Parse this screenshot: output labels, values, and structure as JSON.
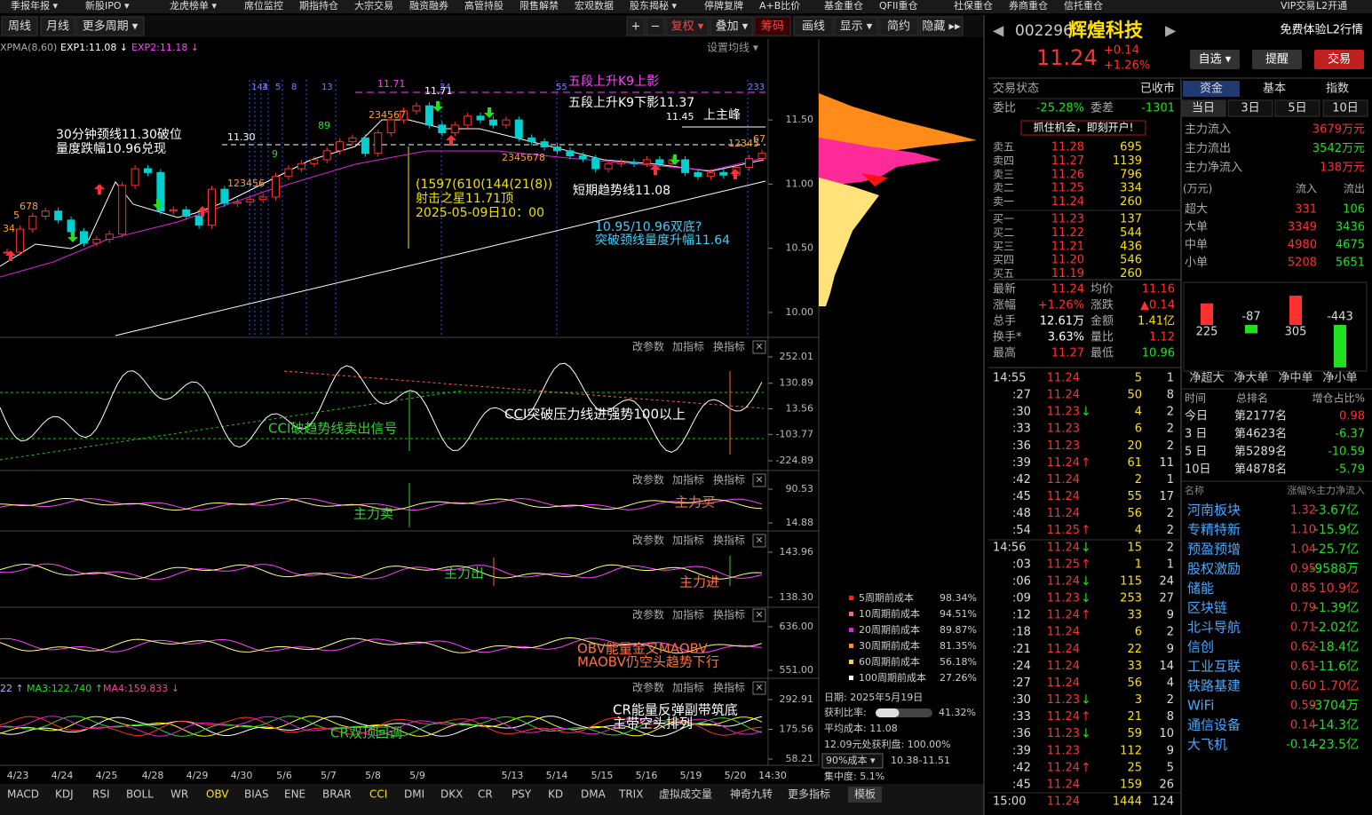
{
  "menu": [
    "季报年报 ▾",
    "新股IPO ▾",
    "龙虎榜单 ▾",
    "席位监控",
    "期指持仓",
    "大宗交易",
    "融资融券",
    "高管持股",
    "限售解禁",
    "宏观数据",
    "股东揭秘 ▾",
    "停牌复牌",
    "A+B比价",
    "基金重仓",
    "QFII重仓",
    "社保重仓",
    "券商重仓",
    "信托重仓",
    "VIP交易",
    "L2开通"
  ],
  "toolbar": {
    "left": [
      "周线",
      "月线",
      "更多周期 ▾"
    ],
    "right": [
      "+",
      "−",
      "复权 ▾",
      "叠加 ▾",
      "筹码",
      "画线",
      "显示 ▾",
      "简约",
      "隐藏 ▸▸"
    ]
  },
  "main_chart": {
    "legend": [
      "XPMA(8,60)",
      "EXP1:11.08 ↓",
      "EXP2:11.18 ↓"
    ],
    "setting": "设置均线 ▾",
    "ylim": [
      9.82,
      12.13
    ],
    "yticks": [
      {
        "value": 11.5,
        "label": "11.50"
      },
      {
        "value": 11,
        "label": "11.00"
      },
      {
        "value": 10.5,
        "label": "10.50"
      },
      {
        "value": 10,
        "label": "10.00"
      }
    ],
    "closes": [
      10.47,
      10.65,
      10.75,
      10.79,
      10.72,
      10.63,
      10.54,
      10.57,
      10.61,
      10.99,
      11.12,
      11.09,
      10.79,
      10.8,
      10.75,
      10.68,
      10.96,
      10.85,
      10.86,
      10.88,
      10.9,
      11.06,
      11.12,
      11.16,
      11.19,
      11.26,
      11.33,
      11.36,
      11.24,
      11.4,
      11.5,
      11.57,
      11.61,
      11.46,
      11.4,
      11.46,
      11.53,
      11.5,
      11.46,
      11.5,
      11.36,
      11.33,
      11.29,
      11.26,
      11.22,
      11.2,
      11.12,
      11.16,
      11.17,
      11.16,
      11.19,
      11.16,
      11.19,
      11.09,
      11.06,
      11.09,
      11.07,
      11.13,
      11.2,
      11.24
    ],
    "annotations": [
      "30分钟颈线11.30破位",
      "量度跌幅10.96兑现",
      "11.30",
      "五段上升K9上影",
      "五段上升K9下影11.37",
      "11.45",
      "上主峰",
      "11.71",
      "11.71",
      "(1597(610(144(21(8))",
      "射击之星11.71顶",
      "2025-05-09日10：00",
      "短期趋势线11.08",
      "10.95/10.96双底?",
      "突破颈线量度升幅11.64"
    ],
    "fib_labels": [
      "144",
      "3",
      "5",
      "8",
      "13",
      "34",
      "55",
      "233"
    ],
    "counts": [
      "678",
      "34",
      "5",
      "123456",
      "89",
      "234567",
      "2345678",
      "9",
      "12345",
      "67"
    ]
  },
  "indicators": [
    {
      "buttons": [
        "改参数",
        "加指标",
        "换指标",
        "✕"
      ],
      "ylim": [
        -261.6,
        333.5
      ],
      "yticks": [
        252.01,
        130.89,
        13.56,
        -103.77,
        -224.89
      ],
      "annotations": [
        "CCI破趋势线卖出信号",
        "CCI突破压力线进强势100以上"
      ]
    },
    {
      "buttons": [
        "改参数",
        "加指标",
        "换指标",
        "✕"
      ],
      "ylim": [
        1,
        128.3
      ],
      "yticks": [
        90.53,
        14.88
      ],
      "annotations": [
        "主力卖",
        "主力买"
      ]
    },
    {
      "buttons": [
        "改参数",
        "加指标",
        "换指标",
        "✕"
      ],
      "ylim": [
        137.5,
        146.4
      ],
      "yticks": [
        143.96,
        {
          "value": 138.3,
          "label": "138.30"
        }
      ],
      "annotations": [
        "主力出",
        "主力进"
      ]
    },
    {
      "buttons": [
        "改参数",
        "加指标",
        "换指标",
        "✕"
      ],
      "ylim": [
        538.9,
        674.2
      ],
      "yticks": [
        {
          "value": 636,
          "label": "636.00"
        },
        {
          "value": 551,
          "label": "551.00"
        }
      ],
      "annotations": [
        "OBV能量金叉MAOBV",
        "MAOBV仍空头趋势下行"
      ]
    },
    {
      "buttons": [
        "改参数",
        "加指标",
        "换指标",
        "✕"
      ],
      "ylim": [
        33.7,
        370
      ],
      "yticks": [
        292.91,
        175.56,
        58.21
      ],
      "legend": [
        "22 ↑",
        "MA3:122.740 ↑",
        "MA4:159.833 ↓"
      ],
      "annotations": [
        "CR双顶回调",
        "CR能量反弹副带筑底",
        "主带空头排列"
      ]
    }
  ],
  "dates": [
    "4/23",
    "4/24",
    "4/25",
    "4/28",
    "4/29",
    "4/30",
    "5/6",
    "5/7",
    "5/8",
    "5/9",
    "5/13",
    "5/14",
    "5/15",
    "5/16",
    "5/19",
    "5/20",
    "14:30"
  ],
  "tabs": [
    "MACD",
    "KDJ",
    "RSI",
    "BOLL",
    "WR",
    "OBV",
    "BIAS",
    "ENE",
    "BRAR",
    "CCI",
    "DMI",
    "DKX",
    "CR",
    "PSY",
    "KD",
    "DMA",
    "TRIX",
    "虚拟成交量",
    "神奇九转",
    "更多指标",
    "模板"
  ],
  "cost": {
    "rows": [
      [
        "5周期前成本",
        "98.34%"
      ],
      [
        "10周期前成本",
        "94.51%"
      ],
      [
        "20周期前成本",
        "89.87%"
      ],
      [
        "30周期前成本",
        "81.35%"
      ],
      [
        "60周期前成本",
        "56.18%"
      ],
      [
        "100周期前成本",
        "27.26%"
      ]
    ],
    "date": "日期: 2025年5月19日",
    "profit_label": "获利比率:",
    "profit_ratio": 41.32,
    "profit_ratio_label": "41.32%",
    "avg_cost": "平均成本: 11.08",
    "profit_at": "12.09元处获利盘: 100.00%",
    "range_select": "90%成本 ▾",
    "range": "10.38-11.51",
    "concentration": "集中度: 5.1%"
  },
  "quote": {
    "code": "002296",
    "name": "辉煌科技",
    "price": "11.24",
    "change": "+0.14",
    "pct": "+1.26%",
    "l2": "免费体验L2行情",
    "buttons": [
      "自选 ▾",
      "提醒",
      "交易"
    ],
    "status_label": "交易状态",
    "status": "已收市",
    "wb_label": "委比",
    "wb": "-25.28%",
    "wc_label": "委差",
    "wc": "-1301",
    "promo": "抓住机会，即刻开户!"
  },
  "order_book": [
    [
      "卖五",
      "11.28",
      "695"
    ],
    [
      "卖四",
      "11.27",
      "1139"
    ],
    [
      "卖三",
      "11.26",
      "796"
    ],
    [
      "卖二",
      "11.25",
      "334"
    ],
    [
      "卖一",
      "11.24",
      "260"
    ],
    [
      "买一",
      "11.23",
      "137"
    ],
    [
      "买二",
      "11.22",
      "544"
    ],
    [
      "买三",
      "11.21",
      "436"
    ],
    [
      "买四",
      "11.20",
      "546"
    ],
    [
      "买五",
      "11.19",
      "260"
    ]
  ],
  "stats": [
    [
      "最新",
      "11.24",
      "均价",
      "11.16"
    ],
    [
      "涨幅",
      "+1.26%",
      "涨跌",
      "▲0.14"
    ],
    [
      "总手",
      "12.61万",
      "金额",
      "1.41亿"
    ],
    [
      "换手*",
      "3.63%",
      "量比",
      "1.12"
    ],
    [
      "最高",
      "11.27",
      "最低",
      "10.96"
    ]
  ],
  "ticks": [
    {
      "t": "14:55",
      "p": "11.24",
      "v": "5",
      "n": "1"
    },
    {
      "t": ":27",
      "p": "11.24",
      "v": "50",
      "n": "8"
    },
    {
      "t": ":30",
      "p": "11.23",
      "d": "↓",
      "v": "4",
      "n": "2"
    },
    {
      "t": ":33",
      "p": "11.23",
      "v": "6",
      "n": "2"
    },
    {
      "t": ":36",
      "p": "11.23",
      "v": "20",
      "n": "2"
    },
    {
      "t": ":39",
      "p": "11.24",
      "d": "↑",
      "v": "61",
      "n": "11"
    },
    {
      "t": ":42",
      "p": "11.24",
      "v": "2",
      "n": "1"
    },
    {
      "t": ":45",
      "p": "11.24",
      "v": "55",
      "n": "17"
    },
    {
      "t": ":48",
      "p": "11.24",
      "v": "56",
      "n": "2"
    },
    {
      "t": ":54",
      "p": "11.25",
      "d": "↑",
      "v": "4",
      "n": "2"
    },
    {
      "t": "14:56",
      "p": "11.24",
      "d": "↓",
      "v": "15",
      "n": "2"
    },
    {
      "t": ":03",
      "p": "11.25",
      "d": "↑",
      "v": "1",
      "n": "1"
    },
    {
      "t": ":06",
      "p": "11.24",
      "d": "↓",
      "v": "115",
      "n": "24"
    },
    {
      "t": ":09",
      "p": "11.23",
      "d": "↓",
      "v": "253",
      "n": "27"
    },
    {
      "t": ":12",
      "p": "11.24",
      "d": "↑",
      "v": "33",
      "n": "9"
    },
    {
      "t": ":18",
      "p": "11.24",
      "v": "6",
      "n": "2"
    },
    {
      "t": ":21",
      "p": "11.24",
      "v": "22",
      "n": "9"
    },
    {
      "t": ":24",
      "p": "11.24",
      "v": "33",
      "n": "14"
    },
    {
      "t": ":27",
      "p": "11.24",
      "v": "56",
      "n": "4"
    },
    {
      "t": ":30",
      "p": "11.23",
      "d": "↓",
      "v": "3",
      "n": "2"
    },
    {
      "t": ":33",
      "p": "11.24",
      "d": "↑",
      "v": "21",
      "n": "8"
    },
    {
      "t": ":36",
      "p": "11.23",
      "d": "↓",
      "v": "59",
      "n": "10"
    },
    {
      "t": ":39",
      "p": "11.23",
      "v": "112",
      "n": "9"
    },
    {
      "t": ":42",
      "p": "11.24",
      "d": "↑",
      "v": "25",
      "n": "5"
    },
    {
      "t": ":45",
      "p": "11.24",
      "v": "159",
      "n": "26"
    },
    {
      "t": "15:00",
      "p": "11.24",
      "v": "1444",
      "n": "124"
    }
  ],
  "fund": {
    "tabs": [
      "资金",
      "基本",
      "指数"
    ],
    "periods": [
      "当日",
      "3日",
      "5日",
      "10日"
    ],
    "main": [
      [
        "主力流入",
        "3679万元"
      ],
      [
        "主力流出",
        "3542万元"
      ],
      [
        "主力净流入",
        "138万元"
      ]
    ],
    "table_header": [
      "(万元)",
      "流入",
      "流出"
    ],
    "table": [
      [
        "超大",
        "331",
        "106"
      ],
      [
        "大单",
        "3349",
        "3436"
      ],
      [
        "中单",
        "4980",
        "4675"
      ],
      [
        "小单",
        "5208",
        "5651"
      ]
    ],
    "net": {
      "categories": [
        "净超大",
        "净大单",
        "净中单",
        "净小单"
      ],
      "values": [
        225,
        -87,
        305,
        -443
      ]
    },
    "rank_header": [
      "时间",
      "总排名",
      "增仓占比%"
    ],
    "rank": [
      [
        "今日",
        "第2177名",
        "0.98"
      ],
      [
        "3 日",
        "第4623名",
        "-6.37"
      ],
      [
        "5 日",
        "第5289名",
        "-10.59"
      ],
      [
        "10日",
        "第4878名",
        "-5.79"
      ]
    ],
    "sector_header": [
      "名称",
      "涨幅%",
      "主力净流入"
    ],
    "sectors": [
      [
        "河南板块",
        "1.32",
        "-3.67亿"
      ],
      [
        "专精特新",
        "1.10",
        "-15.9亿"
      ],
      [
        "预盈预增",
        "1.04",
        "-25.7亿"
      ],
      [
        "股权激励",
        "0.95",
        "-9588万"
      ],
      [
        "储能",
        "0.85",
        "10.9亿"
      ],
      [
        "区块链",
        "0.79",
        "-1.39亿"
      ],
      [
        "北斗导航",
        "0.71",
        "-2.02亿"
      ],
      [
        "信创",
        "0.62",
        "-18.4亿"
      ],
      [
        "工业互联",
        "0.61",
        "-11.6亿"
      ],
      [
        "铁路基建",
        "0.60",
        "1.70亿"
      ],
      [
        "WiFi",
        "0.59",
        "-3704万"
      ],
      [
        "通信设备",
        "0.14",
        "-14.3亿"
      ],
      [
        "大飞机",
        "-0.14",
        "-23.5亿"
      ]
    ]
  }
}
